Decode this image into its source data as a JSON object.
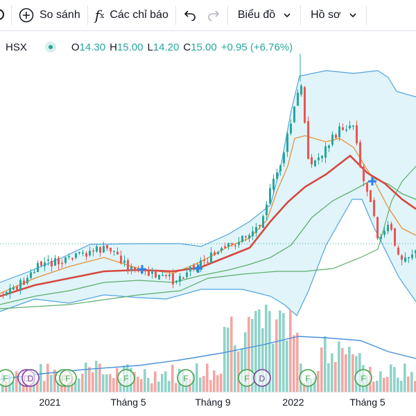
{
  "toolbar": {
    "compare_label": "So sánh",
    "indicators_label": "Các chỉ báo",
    "chart_type_label": "Biểu đồ",
    "profile_label": "Hồ sơ"
  },
  "legend": {
    "exchange": "HSX",
    "open_prefix": "O",
    "open": "14.30",
    "high_prefix": "H",
    "high": "15.00",
    "low_prefix": "L",
    "low": "14.20",
    "close_prefix": "C",
    "close": "15.00",
    "change": "+0.95 (+6.76%)",
    "up_color": "#26a69a",
    "down_color": "#ef5350"
  },
  "time_axis": {
    "labels": [
      "2021",
      "Tháng 5",
      "Tháng 9",
      "2022",
      "Tháng 5"
    ]
  },
  "event_markers": [
    {
      "type": "F",
      "color": "#43a047"
    },
    {
      "type": "D",
      "color": "#7b3fa0"
    },
    {
      "type": "D",
      "color": "#7b3fa0"
    },
    {
      "type": "F",
      "color": "#43a047"
    },
    {
      "type": "F",
      "color": "#43a047"
    },
    {
      "type": "F",
      "color": "#43a047"
    },
    {
      "type": "F",
      "color": "#43a047"
    },
    {
      "type": "F",
      "color": "#43a047"
    },
    {
      "type": "D",
      "color": "#7b3fa0"
    },
    {
      "type": "F",
      "color": "#43a047"
    },
    {
      "type": "F",
      "color": "#43a047"
    }
  ],
  "colors": {
    "band_fill": "#e0f4f9",
    "band_line": "#4fa3e0",
    "ma_red": "#d6473f",
    "ma_orange": "#e8913a",
    "ma_green": "#5cae6a",
    "last_price_line": "#26a69a",
    "volume_ma": "#4a90d9",
    "cross_marker": "#2f80ed"
  }
}
